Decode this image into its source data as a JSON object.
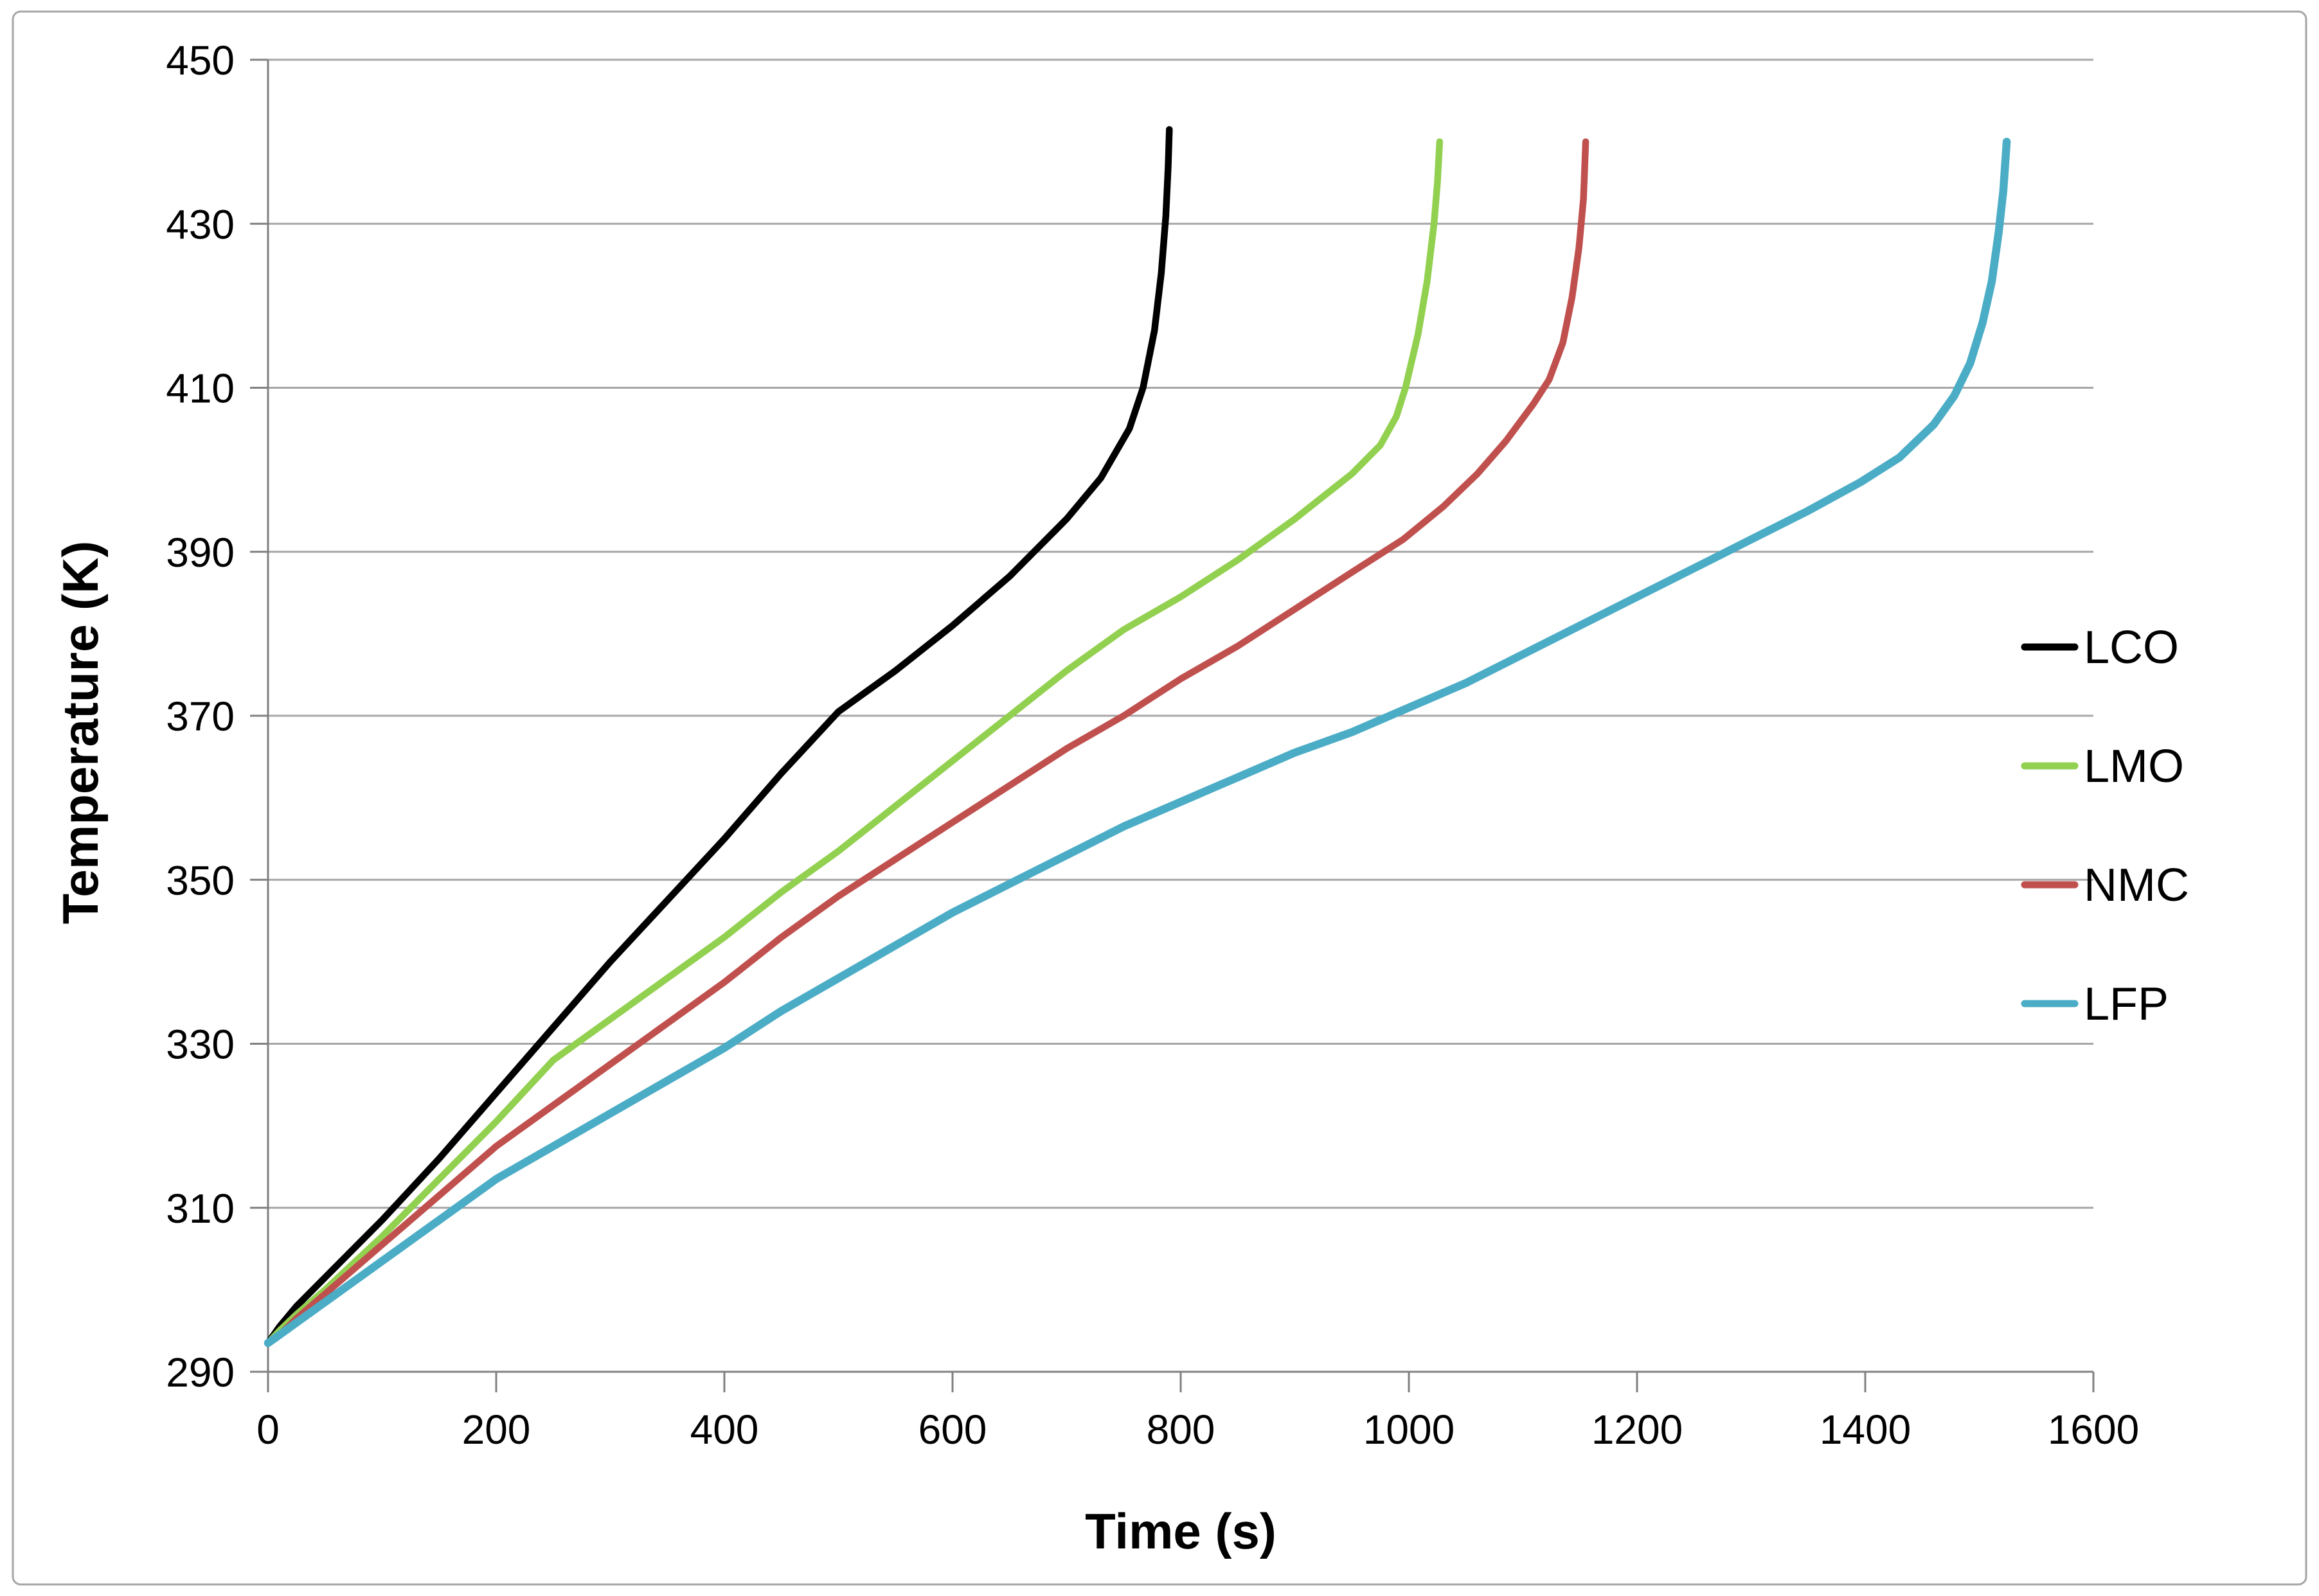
{
  "frame": {
    "background": "#ffffff",
    "border_color": "#a6a6a6",
    "grid_color": "#a6a6a6",
    "axis_color": "#808080",
    "text_color": "#000000"
  },
  "chart_data": {
    "type": "line",
    "title": "",
    "xlabel": "Time (s)",
    "ylabel": "Temperature (K)",
    "xlim": [
      0,
      1600
    ],
    "ylim": [
      290,
      450
    ],
    "x_ticks": [
      0,
      200,
      400,
      600,
      800,
      1000,
      1200,
      1400,
      1600
    ],
    "y_ticks": [
      290,
      310,
      330,
      350,
      370,
      390,
      410,
      430,
      450
    ],
    "grid": "horizontal-only",
    "legend_position": "right",
    "series": [
      {
        "name": "LCO",
        "color": "#000000",
        "points": [
          [
            0,
            293.5
          ],
          [
            10,
            295.5
          ],
          [
            25,
            298
          ],
          [
            50,
            301.5
          ],
          [
            100,
            308.5
          ],
          [
            150,
            316
          ],
          [
            200,
            324
          ],
          [
            250,
            332
          ],
          [
            300,
            340
          ],
          [
            350,
            347.5
          ],
          [
            400,
            355
          ],
          [
            450,
            363
          ],
          [
            500,
            370.5
          ],
          [
            550,
            375.5
          ],
          [
            600,
            381
          ],
          [
            650,
            387
          ],
          [
            700,
            394
          ],
          [
            730,
            399
          ],
          [
            755,
            405
          ],
          [
            767,
            410
          ],
          [
            777,
            417
          ],
          [
            783,
            424
          ],
          [
            787,
            431
          ],
          [
            789,
            437
          ],
          [
            790,
            441.5
          ]
        ]
      },
      {
        "name": "LMO",
        "color": "#92D050",
        "points": [
          [
            0,
            293.5
          ],
          [
            10,
            295
          ],
          [
            25,
            297
          ],
          [
            50,
            300
          ],
          [
            100,
            306.5
          ],
          [
            150,
            313.5
          ],
          [
            200,
            320.5
          ],
          [
            250,
            328
          ],
          [
            300,
            333
          ],
          [
            350,
            338
          ],
          [
            400,
            343
          ],
          [
            450,
            348.5
          ],
          [
            500,
            353.5
          ],
          [
            550,
            359
          ],
          [
            600,
            364.5
          ],
          [
            650,
            370
          ],
          [
            700,
            375.5
          ],
          [
            750,
            380.5
          ],
          [
            800,
            384.5
          ],
          [
            850,
            389
          ],
          [
            900,
            394
          ],
          [
            950,
            399.5
          ],
          [
            975,
            403
          ],
          [
            989,
            406.5
          ],
          [
            997,
            410
          ],
          [
            1008,
            416.5
          ],
          [
            1016,
            423
          ],
          [
            1022,
            430
          ],
          [
            1025,
            435
          ],
          [
            1027,
            440
          ]
        ]
      },
      {
        "name": "NMC",
        "color": "#C0504D",
        "points": [
          [
            0,
            293.5
          ],
          [
            10,
            294.5
          ],
          [
            25,
            296.5
          ],
          [
            50,
            299.5
          ],
          [
            100,
            305.5
          ],
          [
            150,
            311.5
          ],
          [
            200,
            317.5
          ],
          [
            250,
            322.5
          ],
          [
            300,
            327.5
          ],
          [
            350,
            332.5
          ],
          [
            400,
            337.5
          ],
          [
            450,
            343
          ],
          [
            500,
            348
          ],
          [
            550,
            352.5
          ],
          [
            600,
            357
          ],
          [
            650,
            361.5
          ],
          [
            700,
            366
          ],
          [
            750,
            370
          ],
          [
            800,
            374.5
          ],
          [
            850,
            378.5
          ],
          [
            900,
            383
          ],
          [
            950,
            387.5
          ],
          [
            995,
            391.5
          ],
          [
            1030,
            395.5
          ],
          [
            1060,
            399.5
          ],
          [
            1085,
            403.5
          ],
          [
            1109,
            408
          ],
          [
            1123,
            411
          ],
          [
            1135,
            415.5
          ],
          [
            1143,
            421
          ],
          [
            1149,
            427
          ],
          [
            1153,
            433
          ],
          [
            1155,
            440
          ]
        ]
      },
      {
        "name": "LFP",
        "color": "#4BACC6",
        "points": [
          [
            0,
            293.5
          ],
          [
            10,
            294.5
          ],
          [
            25,
            296
          ],
          [
            50,
            298.5
          ],
          [
            100,
            303.5
          ],
          [
            150,
            308.5
          ],
          [
            200,
            313.5
          ],
          [
            250,
            317.5
          ],
          [
            300,
            321.5
          ],
          [
            350,
            325.5
          ],
          [
            400,
            329.5
          ],
          [
            450,
            334
          ],
          [
            500,
            338
          ],
          [
            550,
            342
          ],
          [
            600,
            346
          ],
          [
            650,
            349.5
          ],
          [
            700,
            353
          ],
          [
            750,
            356.5
          ],
          [
            800,
            359.5
          ],
          [
            850,
            362.5
          ],
          [
            900,
            365.5
          ],
          [
            950,
            368
          ],
          [
            1000,
            371
          ],
          [
            1050,
            374
          ],
          [
            1100,
            377.5
          ],
          [
            1150,
            381
          ],
          [
            1200,
            384.5
          ],
          [
            1250,
            388
          ],
          [
            1300,
            391.5
          ],
          [
            1350,
            395
          ],
          [
            1396,
            398.5
          ],
          [
            1430,
            401.5
          ],
          [
            1460,
            405.5
          ],
          [
            1478,
            409
          ],
          [
            1492,
            413
          ],
          [
            1503,
            418
          ],
          [
            1511,
            423
          ],
          [
            1517,
            429
          ],
          [
            1521,
            434
          ],
          [
            1524,
            440
          ]
        ]
      }
    ]
  }
}
